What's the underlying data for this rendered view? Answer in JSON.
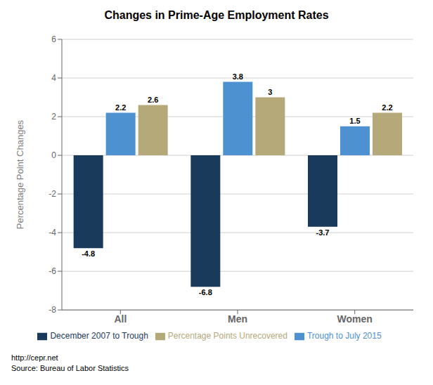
{
  "chart_data": {
    "type": "bar",
    "title": "Changes in Prime-Age Employment Rates",
    "y_label": "Percentage Point Changes",
    "categories": [
      "All",
      "Men",
      "Women"
    ],
    "series": [
      {
        "name": "December 2007 to Trough",
        "color": "#1a3a5c",
        "values": [
          -4.8,
          -6.8,
          -3.7
        ]
      },
      {
        "name": "Trough to July 2015",
        "color": "#4e91d0",
        "values": [
          2.2,
          3.8,
          1.5
        ]
      },
      {
        "name": "Percentage Points Unrecovered",
        "color": "#b5a97a",
        "values": [
          2.6,
          3.0,
          2.2
        ]
      }
    ],
    "ylim": [
      -8,
      6
    ],
    "yticks": [
      -8,
      -6,
      -4,
      -2,
      0,
      2,
      4,
      6
    ],
    "grid": true,
    "legend": "bottom",
    "data_labels": true,
    "annotations": [
      "http://cepr.net",
      "Source: Bureau of Labor Statistics"
    ]
  }
}
